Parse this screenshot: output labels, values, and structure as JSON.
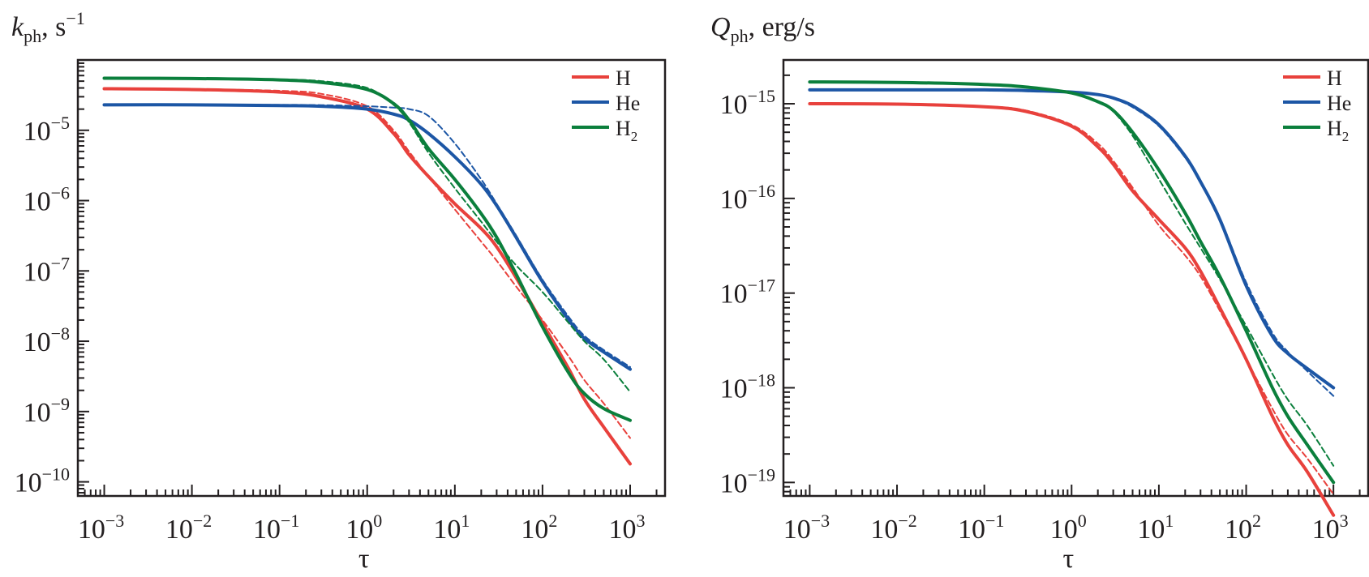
{
  "chart_data": [
    {
      "type": "line",
      "title": "",
      "ylabel": "k_ph, s^-1",
      "ylabel_parts": {
        "symbol": "k",
        "sub": "ph",
        "unit": "s",
        "unit_sup": "−1"
      },
      "xlabel": "τ",
      "xscale": "log",
      "yscale": "log",
      "xlim": [
        0.0005,
        2500
      ],
      "ylim": [
        6.3e-11,
        0.0001
      ],
      "grid": false,
      "legend_position": "top-right",
      "x_ticks": [
        {
          "exp": "−3"
        },
        {
          "exp": "−2"
        },
        {
          "exp": "−1"
        },
        {
          "exp": "0"
        },
        {
          "exp": "1"
        },
        {
          "exp": "2"
        },
        {
          "exp": "3"
        }
      ],
      "y_ticks": [
        {
          "exp": "−5"
        },
        {
          "exp": "−6"
        },
        {
          "exp": "−7"
        },
        {
          "exp": "−8"
        },
        {
          "exp": "−9"
        },
        {
          "exp": "−10"
        }
      ],
      "x": [
        0.001,
        0.01,
        0.1,
        0.3,
        1,
        2,
        3,
        5,
        10,
        20,
        30,
        50,
        100,
        200,
        300,
        500,
        1000
      ],
      "series": [
        {
          "name": "H",
          "sub": "",
          "color": "#e8413c",
          "style": "solid",
          "values": [
            3.9e-05,
            3.8e-05,
            3.5e-05,
            3e-05,
            2e-05,
            9e-06,
            4.5e-06,
            2.2e-06,
            9e-07,
            4e-07,
            2.2e-07,
            8e-08,
            1.8e-08,
            4e-09,
            1.5e-09,
            6e-10,
            1.8e-10
          ]
        },
        {
          "name": "H",
          "sub": "",
          "color": "#e8413c",
          "style": "dashed",
          "legend": false,
          "values": [
            3.9e-05,
            3.85e-05,
            3.65e-05,
            3.3e-05,
            2.2e-05,
            1e-05,
            5e-06,
            2.2e-06,
            7.5e-07,
            2.6e-07,
            1.4e-07,
            6e-08,
            2e-08,
            6e-09,
            2.8e-09,
            1.3e-09,
            4.2e-10
          ]
        },
        {
          "name": "He",
          "sub": "",
          "color": "#1c56a5",
          "style": "solid",
          "values": [
            2.3e-05,
            2.3e-05,
            2.25e-05,
            2.2e-05,
            2e-05,
            1.7e-05,
            1.4e-05,
            9e-06,
            4.2e-06,
            1.7e-06,
            8.5e-07,
            3e-07,
            7e-08,
            2e-08,
            1.1e-08,
            7e-09,
            4e-09
          ]
        },
        {
          "name": "He",
          "sub": "",
          "color": "#1c56a5",
          "style": "dashed",
          "legend": false,
          "values": [
            2.3e-05,
            2.3e-05,
            2.3e-05,
            2.28e-05,
            2.2e-05,
            2.1e-05,
            2e-05,
            1.6e-05,
            6.5e-06,
            2e-06,
            9e-07,
            3.2e-07,
            7.5e-08,
            2.2e-08,
            1.2e-08,
            7.5e-09,
            4.3e-09
          ]
        },
        {
          "name": "H",
          "sub": "2",
          "color": "#0b7f3c",
          "style": "solid",
          "values": [
            5.5e-05,
            5.45e-05,
            5.2e-05,
            4.8e-05,
            3.8e-05,
            2.4e-05,
            1.4e-05,
            5.5e-06,
            2e-06,
            6.5e-07,
            3e-07,
            9e-08,
            1.6e-08,
            3.5e-09,
            1.8e-09,
            1.1e-09,
            7.5e-10
          ]
        },
        {
          "name": "H",
          "sub": "2",
          "color": "#0b7f3c",
          "style": "dashed",
          "legend": false,
          "values": [
            5.5e-05,
            5.5e-05,
            5.3e-05,
            5e-05,
            4e-05,
            2.3e-05,
            1.3e-05,
            4.8e-06,
            1.5e-06,
            5e-07,
            2.6e-07,
            1.2e-07,
            5e-08,
            1.8e-08,
            1e-08,
            5.5e-09,
            1.9e-09
          ]
        }
      ]
    },
    {
      "type": "line",
      "title": "",
      "ylabel": "Q_ph, erg/s",
      "ylabel_parts": {
        "symbol": "Q",
        "sub": "ph",
        "unit": "erg/s",
        "unit_sup": ""
      },
      "xlabel": "τ",
      "xscale": "log",
      "yscale": "log",
      "xlim": [
        0.0005,
        2500
      ],
      "ylim": [
        7.2e-20,
        2.9e-15
      ],
      "grid": false,
      "legend_position": "top-right",
      "x_ticks": [
        {
          "exp": "−3"
        },
        {
          "exp": "−2"
        },
        {
          "exp": "−1"
        },
        {
          "exp": "0"
        },
        {
          "exp": "1"
        },
        {
          "exp": "2"
        },
        {
          "exp": "3"
        }
      ],
      "y_ticks": [
        {
          "exp": "−15"
        },
        {
          "exp": "−16"
        },
        {
          "exp": "−17"
        },
        {
          "exp": "−18"
        },
        {
          "exp": "−19"
        }
      ],
      "x": [
        0.001,
        0.01,
        0.1,
        0.3,
        1,
        2,
        3,
        5,
        10,
        20,
        30,
        50,
        100,
        200,
        300,
        500,
        1000
      ],
      "series": [
        {
          "name": "H",
          "sub": "",
          "color": "#e8413c",
          "style": "solid",
          "values": [
            1e-15,
            9.9e-16,
            9.3e-16,
            8.3e-16,
            5.8e-16,
            3.5e-16,
            2.3e-16,
            1.2e-16,
            6e-17,
            3e-17,
            1.7e-17,
            7e-18,
            2e-18,
            5e-19,
            2.5e-19,
            1.3e-19,
            4.5e-20
          ]
        },
        {
          "name": "H",
          "sub": "",
          "color": "#e8413c",
          "style": "dashed",
          "legend": false,
          "values": [
            1e-15,
            9.9e-16,
            9.4e-16,
            8.5e-16,
            6e-16,
            3.8e-16,
            2.5e-16,
            1.3e-16,
            5.2e-17,
            2.5e-17,
            1.5e-17,
            6.5e-18,
            2e-18,
            6e-19,
            3.2e-19,
            1.8e-19,
            7.5e-20
          ]
        },
        {
          "name": "He",
          "sub": "",
          "color": "#1c56a5",
          "style": "solid",
          "values": [
            1.4e-15,
            1.4e-15,
            1.4e-15,
            1.38e-15,
            1.33e-15,
            1.25e-15,
            1.15e-15,
            9.5e-16,
            6e-16,
            2.8e-16,
            1.5e-16,
            6e-17,
            1.2e-17,
            3.5e-18,
            2.3e-18,
            1.6e-18,
            1e-18
          ]
        },
        {
          "name": "He",
          "sub": "",
          "color": "#1c56a5",
          "style": "dashed",
          "legend": false,
          "values": [
            1.4e-15,
            1.4e-15,
            1.4e-15,
            1.38e-15,
            1.33e-15,
            1.25e-15,
            1.13e-15,
            9.2e-16,
            5.8e-16,
            2.7e-16,
            1.5e-16,
            6.2e-17,
            1.3e-17,
            3.8e-18,
            2.4e-18,
            1.5e-18,
            8.2e-19
          ]
        },
        {
          "name": "H",
          "sub": "2",
          "color": "#0b7f3c",
          "style": "solid",
          "values": [
            1.7e-15,
            1.68e-15,
            1.6e-15,
            1.5e-15,
            1.3e-15,
            1.05e-15,
            8.5e-16,
            5e-16,
            2e-16,
            7e-17,
            3.5e-17,
            1.5e-17,
            4e-18,
            1e-18,
            5e-19,
            2.5e-19,
            1e-19
          ]
        },
        {
          "name": "H",
          "sub": "2",
          "color": "#0b7f3c",
          "style": "dashed",
          "legend": false,
          "values": [
            1.7e-15,
            1.68e-15,
            1.6e-15,
            1.5e-15,
            1.3e-15,
            1.05e-15,
            8.3e-16,
            4.6e-16,
            1.6e-16,
            5.5e-17,
            3e-17,
            1.4e-17,
            4.5e-18,
            1.4e-18,
            7.5e-19,
            4e-19,
            1.5e-19
          ]
        }
      ]
    }
  ]
}
